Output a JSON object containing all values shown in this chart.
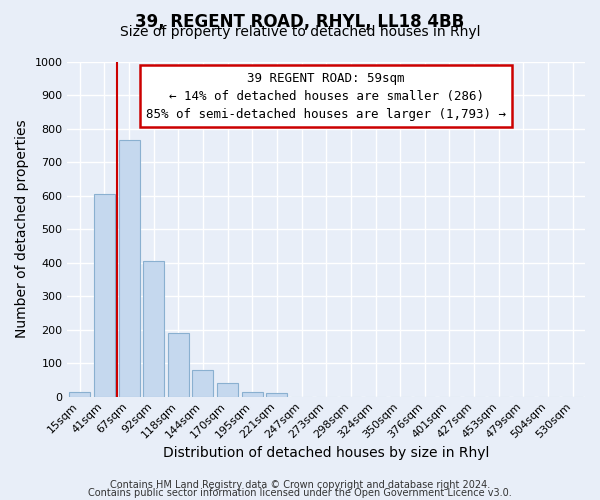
{
  "title1": "39, REGENT ROAD, RHYL, LL18 4BB",
  "title2": "Size of property relative to detached houses in Rhyl",
  "xlabel": "Distribution of detached houses by size in Rhyl",
  "ylabel": "Number of detached properties",
  "bar_labels": [
    "15sqm",
    "41sqm",
    "67sqm",
    "92sqm",
    "118sqm",
    "144sqm",
    "170sqm",
    "195sqm",
    "221sqm",
    "247sqm",
    "273sqm",
    "298sqm",
    "324sqm",
    "350sqm",
    "376sqm",
    "401sqm",
    "427sqm",
    "453sqm",
    "479sqm",
    "504sqm",
    "530sqm"
  ],
  "bar_values": [
    15,
    605,
    765,
    405,
    190,
    78,
    40,
    15,
    12,
    0,
    0,
    0,
    0,
    0,
    0,
    0,
    0,
    0,
    0,
    0,
    0
  ],
  "bar_color": "#c5d8ee",
  "bar_edge_color": "#8ab0d0",
  "vline_x": 1.5,
  "vline_color": "#cc0000",
  "annotation_line0": "39 REGENT ROAD: 59sqm",
  "annotation_line1": "← 14% of detached houses are smaller (286)",
  "annotation_line2": "85% of semi-detached houses are larger (1,793) →",
  "annotation_box_color": "#ffffff",
  "annotation_box_edge": "#cc0000",
  "ylim": [
    0,
    1000
  ],
  "yticks": [
    0,
    100,
    200,
    300,
    400,
    500,
    600,
    700,
    800,
    900,
    1000
  ],
  "footer1": "Contains HM Land Registry data © Crown copyright and database right 2024.",
  "footer2": "Contains public sector information licensed under the Open Government Licence v3.0.",
  "background_color": "#e8eef8",
  "grid_color": "#ffffff",
  "title1_fontsize": 12,
  "title2_fontsize": 10,
  "axis_label_fontsize": 10,
  "tick_fontsize": 8,
  "footer_fontsize": 7,
  "annotation_fontsize": 9
}
